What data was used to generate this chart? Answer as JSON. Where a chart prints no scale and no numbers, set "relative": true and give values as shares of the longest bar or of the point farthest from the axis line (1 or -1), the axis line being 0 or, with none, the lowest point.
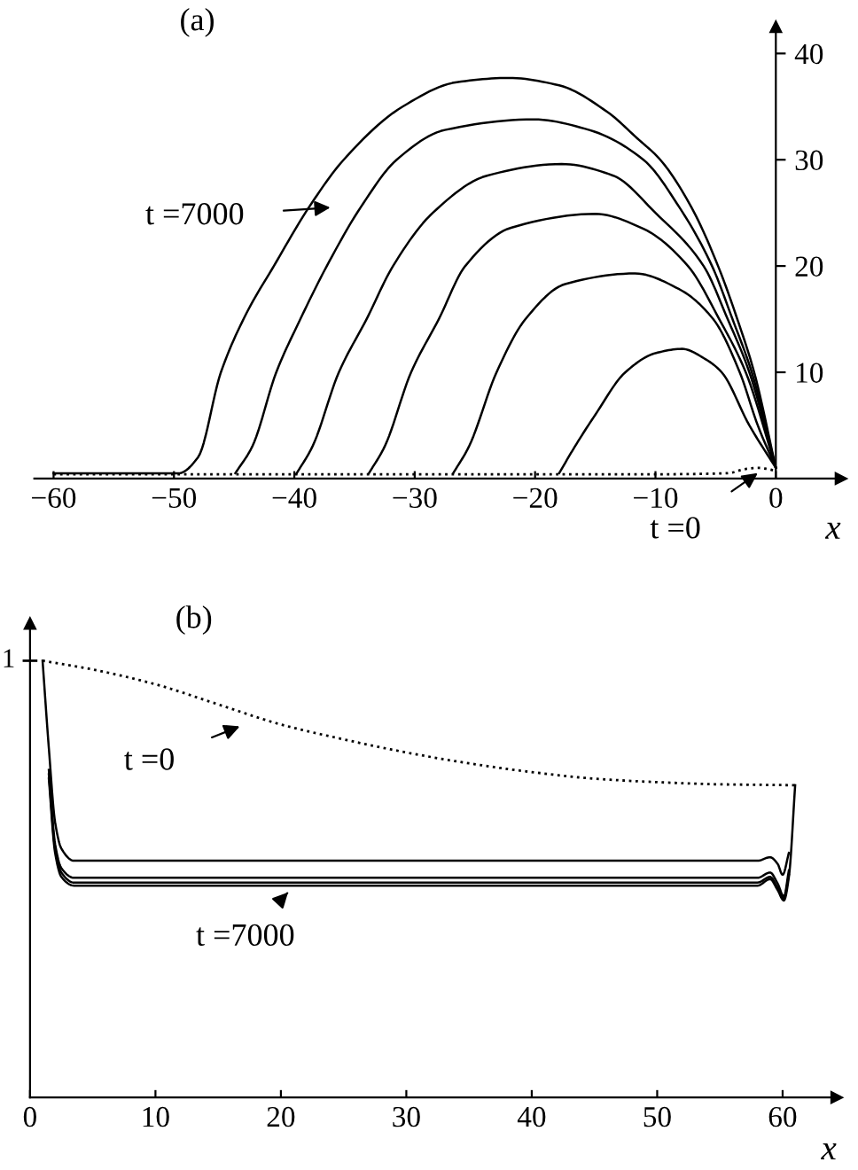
{
  "chart_data": [
    {
      "type": "line",
      "title": "(a)",
      "xlabel": "x",
      "xlim": [
        -61.6,
        5.4
      ],
      "ylim": [
        0,
        42.5
      ],
      "xticks": [
        {
          "value": -60,
          "label": "−60"
        },
        {
          "value": -50,
          "label": "−50"
        },
        {
          "value": -40,
          "label": "−40"
        },
        {
          "value": -30,
          "label": "−30"
        },
        {
          "value": -20,
          "label": "−20"
        },
        {
          "value": -10,
          "label": "−10"
        },
        0
      ],
      "yticks": [
        10,
        20,
        30,
        40
      ],
      "grid": false,
      "legend": false,
      "marker": "none",
      "series": [
        {
          "color": "#000000",
          "line_style": "dotted",
          "x": [
            -60,
            -10,
            -4,
            -2.5,
            -1.5,
            -0.7,
            0
          ],
          "values": [
            0.4,
            0.4,
            0.5,
            0.9,
            1.0,
            0.9,
            0.7
          ]
        },
        {
          "color": "#000000",
          "line_style": "solid",
          "x": [
            -18,
            -16.7,
            -15,
            -12.5,
            -10,
            -7.8,
            -5.8,
            -4.5,
            -2.2,
            0
          ],
          "values": [
            0.5,
            3,
            6,
            10,
            11.8,
            12.2,
            11.2,
            10,
            5,
            1
          ]
        },
        {
          "color": "#000000",
          "line_style": "solid",
          "x": [
            -26.8,
            -25.5,
            -23.2,
            -20.8,
            -17.5,
            -11.7,
            -8,
            -5.2,
            -3,
            -1.5,
            0
          ],
          "values": [
            0.5,
            3,
            10,
            15,
            18.3,
            19.3,
            17.8,
            15,
            10,
            5,
            1
          ]
        },
        {
          "color": "#000000",
          "line_style": "solid",
          "x": [
            -33.8,
            -32.5,
            -30.3,
            -28,
            -25.8,
            -22,
            -15,
            -11,
            -7.3,
            -4.7,
            -2.5,
            0
          ],
          "values": [
            0.5,
            3,
            10,
            15,
            20,
            23.6,
            24.9,
            23.5,
            20,
            15,
            10,
            1
          ]
        },
        {
          "color": "#000000",
          "line_style": "solid",
          "x": [
            -39.8,
            -38.5,
            -36.3,
            -34,
            -31.8,
            -28.5,
            -24,
            -17.8,
            -13.5,
            -10,
            -6,
            -4,
            -2.2,
            0
          ],
          "values": [
            0.5,
            3,
            10,
            15,
            20,
            25,
            28.5,
            29.6,
            28.5,
            25,
            20,
            15,
            10,
            1
          ]
        },
        {
          "color": "#000000",
          "line_style": "solid",
          "x": [
            -44.9,
            -43.5,
            -41.5,
            -39.5,
            -37.3,
            -34.5,
            -31.5,
            -27.5,
            -20.1,
            -15.5,
            -11,
            -8,
            -5.3,
            -3.6,
            -2,
            0
          ],
          "values": [
            0.5,
            3,
            10,
            15,
            20,
            25.5,
            30,
            32.8,
            33.8,
            32.8,
            30,
            25.5,
            20,
            15,
            10,
            1
          ]
        },
        {
          "color": "#000000",
          "line_style": "solid",
          "x": [
            -60,
            -49.6,
            -48,
            -46.1,
            -44,
            -41.7,
            -38.8,
            -35.9,
            -31,
            -26.5,
            -22.2,
            -18,
            -14,
            -11.5,
            -9.6,
            -7,
            -4.8,
            -3.2,
            -1.8,
            0
          ],
          "values": [
            0.5,
            0.5,
            2,
            10,
            15.5,
            20,
            25.5,
            30,
            35,
            37.3,
            37.7,
            37,
            34.5,
            32,
            30,
            25.5,
            20,
            15,
            10,
            1
          ]
        }
      ],
      "annotations": [
        "t =7000",
        "t =0"
      ]
    },
    {
      "type": "line",
      "title": "(b)",
      "xlabel": "x",
      "relative": true,
      "xlim": [
        0,
        64.3
      ],
      "xticks": [
        0,
        10,
        20,
        30,
        40,
        50,
        60
      ],
      "grid": false,
      "legend": false,
      "marker": "none",
      "series": [
        {
          "color": "#000000",
          "line_style": "dotted",
          "x": [
            1,
            5,
            10,
            15,
            20,
            25,
            30,
            35,
            40,
            45,
            50,
            55,
            61
          ],
          "values": [
            1,
            0.98,
            0.946,
            0.9,
            0.854,
            0.82,
            0.79,
            0.765,
            0.745,
            0.73,
            0.722,
            0.717,
            0.715
          ]
        },
        {
          "color": "#000000",
          "line_style": "solid",
          "x": [
            1,
            1.5,
            2,
            2.5,
            3.5,
            58,
            59,
            59.6,
            60,
            60.5
          ],
          "values": [
            1,
            0.8,
            0.63,
            0.57,
            0.542,
            0.542,
            0.55,
            0.535,
            0.51,
            0.56
          ]
        },
        {
          "color": "#000000",
          "line_style": "solid",
          "x": [
            1.5,
            2,
            2.5,
            3.5,
            58,
            59,
            59.6,
            60.1,
            60.5
          ],
          "values": [
            0.75,
            0.58,
            0.525,
            0.503,
            0.503,
            0.515,
            0.49,
            0.46,
            0.52
          ]
        },
        {
          "color": "#000000",
          "line_style": "solid",
          "x": [
            1.5,
            2,
            2.5,
            3.5,
            58,
            59,
            59.6,
            60.1,
            60.5
          ],
          "values": [
            0.74,
            0.57,
            0.515,
            0.492,
            0.492,
            0.505,
            0.48,
            0.455,
            0.51
          ]
        },
        {
          "color": "#000000",
          "line_style": "solid",
          "x": [
            1.5,
            2,
            2.5,
            3.5,
            58,
            59,
            59.6,
            60.1,
            60.5,
            61
          ],
          "values": [
            0.73,
            0.56,
            0.505,
            0.485,
            0.485,
            0.5,
            0.475,
            0.451,
            0.505,
            0.715
          ]
        }
      ],
      "annotations": [
        "1",
        "t =0",
        "t =7000"
      ]
    }
  ]
}
